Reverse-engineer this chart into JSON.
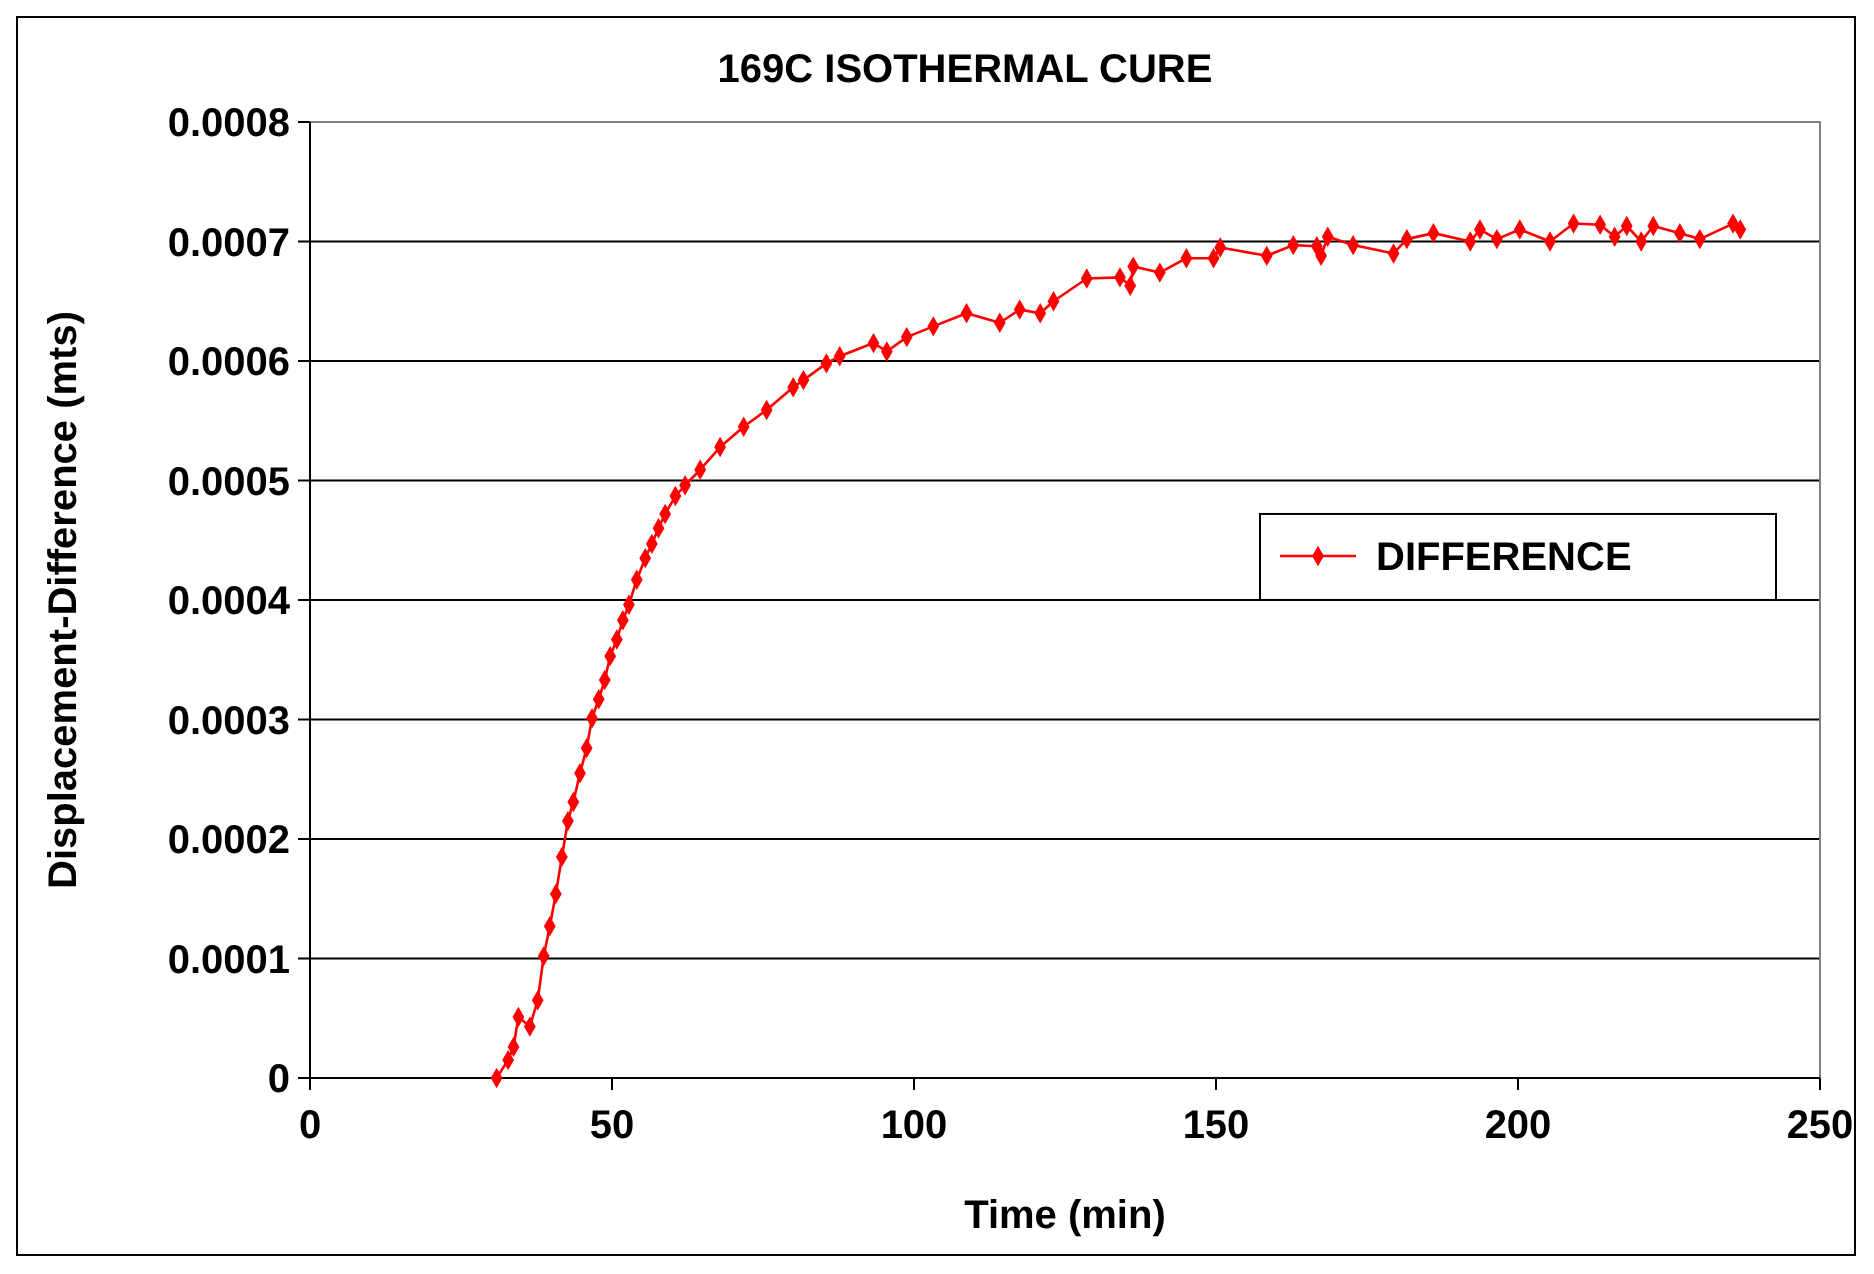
{
  "chart_data": {
    "type": "line",
    "title": "169C ISOTHERMAL CURE",
    "xlabel": "Time (min)",
    "ylabel": "Displacement-Difference (mts)",
    "xlim": [
      0,
      250
    ],
    "xticks": [
      0,
      50,
      100,
      150,
      200,
      250
    ],
    "ylim": [
      0,
      0.0008
    ],
    "yticks": [
      {
        "value": 0,
        "label": "0"
      },
      {
        "value": 0.0001,
        "label": "0.0001"
      },
      {
        "value": 0.0002,
        "label": "0.0002"
      },
      {
        "value": 0.0003,
        "label": "0.0003"
      },
      {
        "value": 0.0004,
        "label": "0.0004"
      },
      {
        "value": 0.0005,
        "label": "0.0005"
      },
      {
        "value": 0.0006,
        "label": "0.0006"
      },
      {
        "value": 0.0007,
        "label": "0.0007"
      },
      {
        "value": 0.0008,
        "label": "0.0008"
      }
    ],
    "grid": "y",
    "legend": "right",
    "marker": "diamond",
    "line_style": "solid",
    "series": [
      {
        "name": "DIFFERENCE",
        "color": "#ff0000",
        "x": [
          30.9,
          32.8,
          33.7,
          34.5,
          36.4,
          37.7,
          38.7,
          39.7,
          40.7,
          41.7,
          42.7,
          43.6,
          44.7,
          45.8,
          46.7,
          47.8,
          48.8,
          49.7,
          50.8,
          51.8,
          52.8,
          54.1,
          55.5,
          56.6,
          57.7,
          58.8,
          60.5,
          62.1,
          64.6,
          67.9,
          71.8,
          75.6,
          80,
          81.7,
          85.5,
          87.7,
          93.3,
          95.5,
          98.8,
          103.2,
          108.7,
          114.2,
          117.5,
          120.9,
          123.1,
          128.6,
          134.1,
          135.8,
          136.3,
          140.7,
          145.1,
          149.6,
          150.7,
          158.4,
          162.8,
          166.7,
          167.4,
          168.5,
          172.7,
          179.4,
          181.6,
          186,
          192.1,
          193.7,
          196.5,
          200.3,
          205.3,
          209.2,
          213.6,
          216,
          218,
          220.4,
          222.4,
          226.8,
          230.1,
          235.6,
          236.8
        ],
        "values": [
          0,
          1.5e-05,
          2.6e-05,
          5.1e-05,
          4.3e-05,
          6.5e-05,
          0.000102,
          0.000127,
          0.000154,
          0.000185,
          0.000215,
          0.000231,
          0.000255,
          0.000276,
          0.000301,
          0.000317,
          0.000333,
          0.000353,
          0.000367,
          0.000383,
          0.000396,
          0.000417,
          0.000435,
          0.000447,
          0.00046,
          0.000472,
          0.000487,
          0.000496,
          0.000509,
          0.000528,
          0.000545,
          0.000559,
          0.000578,
          0.000584,
          0.000598,
          0.000604,
          0.000615,
          0.000608,
          0.00062,
          0.000629,
          0.00064,
          0.000632,
          0.000643,
          0.00064,
          0.00065,
          0.000669,
          0.00067,
          0.000663,
          0.000679,
          0.000674,
          0.000686,
          0.000686,
          0.000695,
          0.000688,
          0.000697,
          0.000696,
          0.000688,
          0.000704,
          0.000697,
          0.00069,
          0.000702,
          0.000707,
          0.0007,
          0.00071,
          0.000702,
          0.00071,
          0.0007,
          0.000715,
          0.000714,
          0.000704,
          0.000713,
          0.0007,
          0.000713,
          0.000707,
          0.000702,
          0.000715,
          0.00071
        ]
      }
    ]
  }
}
